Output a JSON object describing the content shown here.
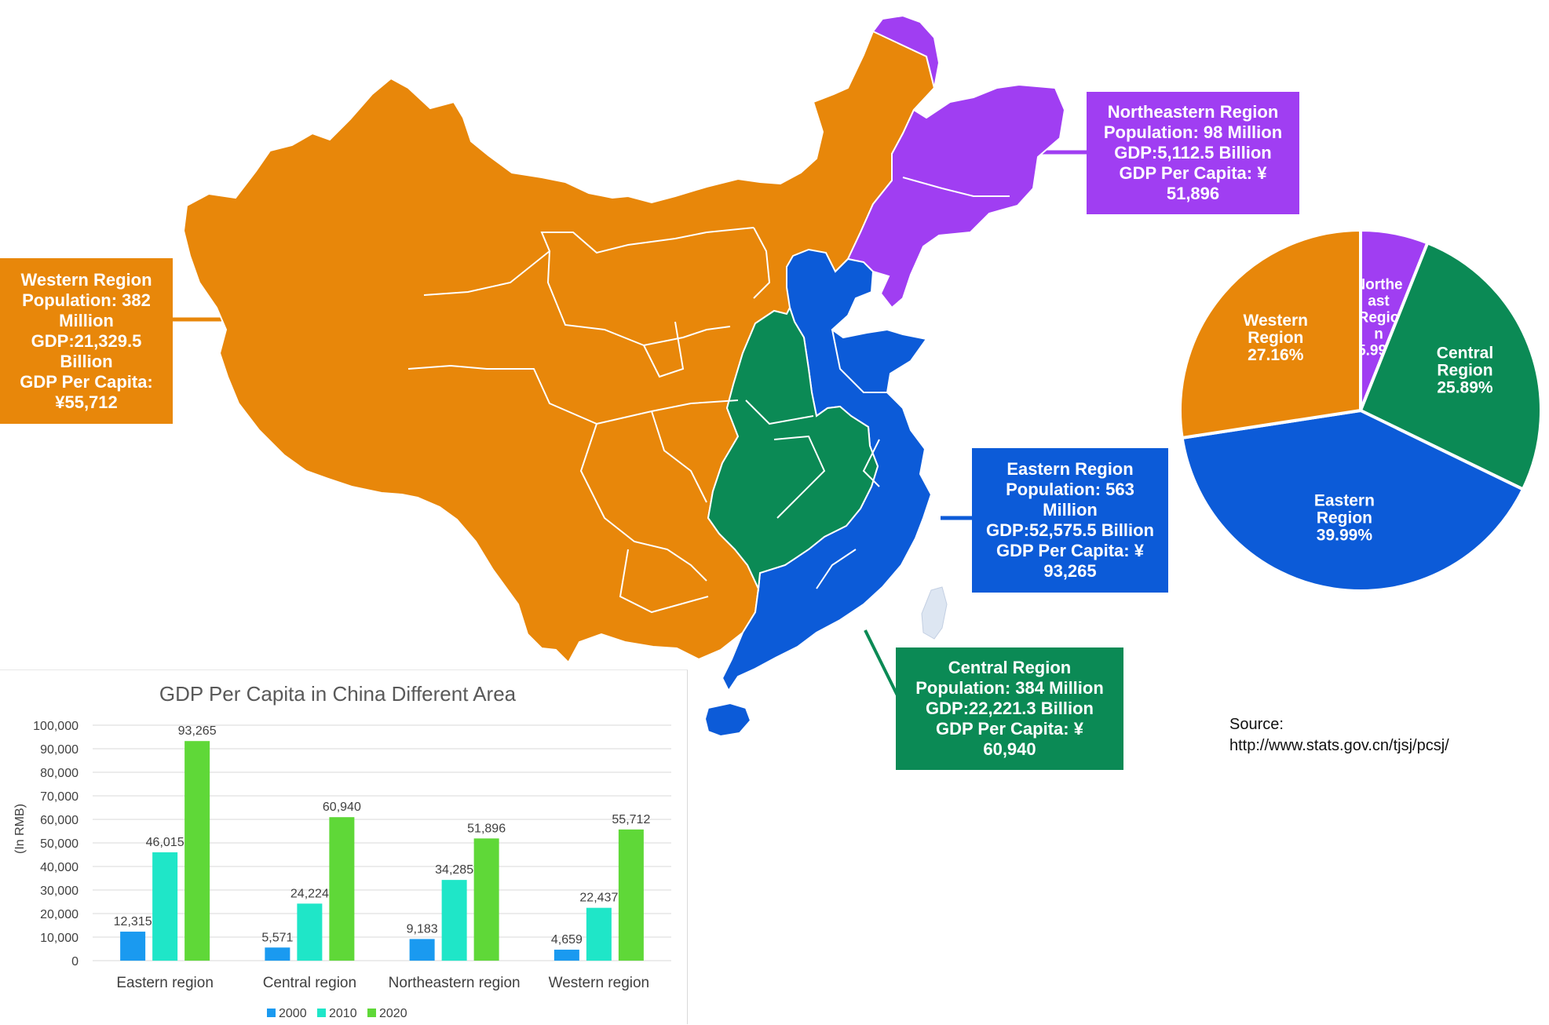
{
  "colors": {
    "western": "#e8870a",
    "northeast": "#a03ef2",
    "eastern": "#0c5bd8",
    "central": "#0b8a55",
    "taiwan": "#dde6f2",
    "bar_2000": "#1a9af0",
    "bar_2010": "#1fe6c8",
    "bar_2020": "#5fd838"
  },
  "regions": {
    "western": {
      "lines": [
        "Western Region",
        "Population: 382",
        "Million",
        "GDP:21,329.5",
        "Billion",
        "GDP Per Capita:",
        "¥55,712"
      ]
    },
    "northeast": {
      "lines": [
        "Northeastern Region",
        "Population: 98 Million",
        "GDP:5,112.5 Billion",
        "GDP Per Capita: ¥",
        "51,896"
      ]
    },
    "eastern": {
      "lines": [
        "Eastern Region",
        "Population: 563",
        "Million",
        "GDP:52,575.5 Billion",
        "GDP Per Capita: ¥",
        "93,265"
      ]
    },
    "central": {
      "lines": [
        "Central Region",
        "Population: 384 Million",
        "GDP:22,221.3 Billion",
        "GDP Per Capita: ¥",
        "60,940"
      ]
    }
  },
  "source": {
    "label": "Source:",
    "url": "http://www.stats.gov.cn/tjsj/pcsj/"
  },
  "chart_data": [
    {
      "type": "pie",
      "title": "",
      "slices": [
        {
          "name": "Northeast Region",
          "value": 5.99,
          "label_lines": [
            "Northe",
            "ast",
            "Regio",
            "n",
            "5.99%"
          ],
          "color_key": "northeast"
        },
        {
          "name": "Central Region",
          "value": 25.89,
          "label_lines": [
            "Central",
            "Region",
            "25.89%"
          ],
          "color_key": "central"
        },
        {
          "name": "Eastern Region",
          "value": 39.99,
          "label_lines": [
            "Eastern",
            "Region",
            "39.99%"
          ],
          "color_key": "eastern"
        },
        {
          "name": "Western Region",
          "value": 27.16,
          "label_lines": [
            "Western",
            "Region",
            "27.16%"
          ],
          "color_key": "western"
        }
      ]
    },
    {
      "type": "bar",
      "title": "GDP Per Capita in China Different Area",
      "xlabel": "",
      "ylabel": "(In RMB)",
      "ylim": [
        0,
        100000
      ],
      "yticks": [
        0,
        10000,
        20000,
        30000,
        40000,
        50000,
        60000,
        70000,
        80000,
        90000,
        100000
      ],
      "ytick_labels": [
        "0",
        "10,000",
        "20,000",
        "30,000",
        "40,000",
        "50,000",
        "60,000",
        "70,000",
        "80,000",
        "90,000",
        "100,000"
      ],
      "grid": true,
      "legend": "bottom",
      "categories": [
        "Eastern region",
        "Central region",
        "Northeastern region",
        "Western region"
      ],
      "series": [
        {
          "name": "2000",
          "values": [
            12315,
            5571,
            9183,
            4659
          ],
          "labels": [
            "12,315",
            "5,571",
            "9,183",
            "4,659"
          ],
          "color_key": "bar_2000"
        },
        {
          "name": "2010",
          "values": [
            46015,
            24224,
            34285,
            22437
          ],
          "labels": [
            "46,015",
            "24,224",
            "34,285",
            "22,437"
          ],
          "color_key": "bar_2010"
        },
        {
          "name": "2020",
          "values": [
            93265,
            60940,
            51896,
            55712
          ],
          "labels": [
            "93,265",
            "60,940",
            "51,896",
            "55,712"
          ],
          "color_key": "bar_2020"
        }
      ]
    }
  ]
}
